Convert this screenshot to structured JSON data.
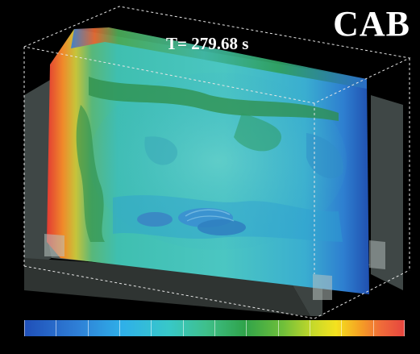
{
  "labels": {
    "name": "CAB",
    "time": "T= 279.68 s"
  },
  "colorbar": {
    "tick_labels": [
      "",
      "",
      "",
      "",
      "",
      "",
      "",
      "",
      "",
      "",
      "",
      "",
      ""
    ]
  }
}
